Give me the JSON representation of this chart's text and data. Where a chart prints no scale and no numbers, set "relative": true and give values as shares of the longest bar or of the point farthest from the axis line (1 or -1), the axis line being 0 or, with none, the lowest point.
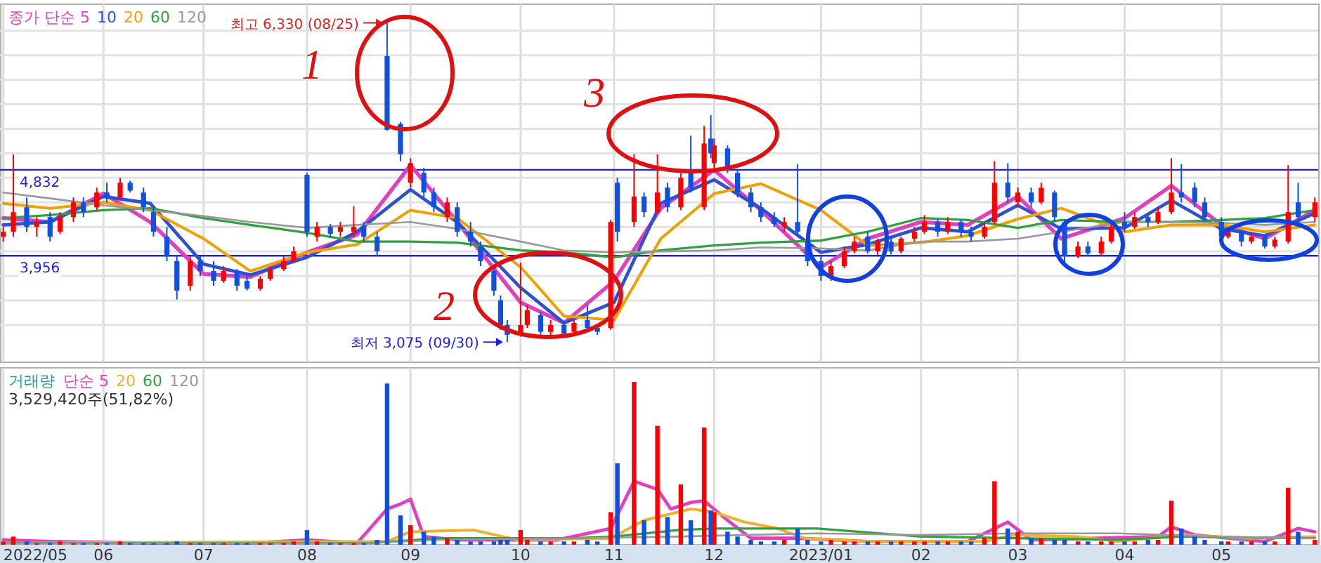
{
  "chart_data": [
    {
      "type": "candlestick",
      "xlim": [
        "2022-05-01",
        "2023-05-31"
      ],
      "ylim": [
        2870,
        6520
      ],
      "xticks": [
        {
          "value": "2022-05-02",
          "label": null
        },
        {
          "value": "2022-06-01",
          "label": null
        },
        {
          "value": "2022-07-01",
          "label": null
        },
        {
          "value": "2022-08-01",
          "label": null
        },
        {
          "value": "2022-09-01",
          "label": null
        },
        {
          "value": "2022-10-04",
          "label": null
        },
        {
          "value": "2022-11-01",
          "label": null
        },
        {
          "value": "2022-12-01",
          "label": null
        },
        {
          "value": "2023-01-02",
          "label": null
        },
        {
          "value": "2023-02-01",
          "label": null
        },
        {
          "value": "2023-03-02",
          "label": null
        },
        {
          "value": "2023-04-03",
          "label": null
        },
        {
          "value": "2023-05-02",
          "label": null
        }
      ],
      "yticks": [
        {
          "value": 3250,
          "label": null
        },
        {
          "value": 3500,
          "label": null
        },
        {
          "value": 3750,
          "label": null
        },
        {
          "value": 4000,
          "label": null
        },
        {
          "value": 4250,
          "label": null
        },
        {
          "value": 4500,
          "label": null
        },
        {
          "value": 4750,
          "label": null
        },
        {
          "value": 5000,
          "label": null
        },
        {
          "value": 5250,
          "label": null
        },
        {
          "value": 5500,
          "label": null
        },
        {
          "value": 5750,
          "label": null
        },
        {
          "value": 6000,
          "label": null
        },
        {
          "value": 6250,
          "label": null
        }
      ],
      "tick_labels": false,
      "grid": true,
      "legend": "top left",
      "x": [
        "2022-05-02",
        "2022-05-05",
        "2022-05-09",
        "2022-05-12",
        "2022-05-16",
        "2022-05-19",
        "2022-05-23",
        "2022-05-26",
        "2022-05-30",
        "2022-06-02",
        "2022-06-06",
        "2022-06-09",
        "2022-06-13",
        "2022-06-16",
        "2022-06-20",
        "2022-06-23",
        "2022-06-27",
        "2022-06-30",
        "2022-07-04",
        "2022-07-07",
        "2022-07-11",
        "2022-07-14",
        "2022-07-18",
        "2022-07-21",
        "2022-07-25",
        "2022-07-28",
        "2022-08-01",
        "2022-08-04",
        "2022-08-08",
        "2022-08-11",
        "2022-08-15",
        "2022-08-18",
        "2022-08-22",
        "2022-08-25",
        "2022-08-29",
        "2022-09-01",
        "2022-09-05",
        "2022-09-08",
        "2022-09-12",
        "2022-09-15",
        "2022-09-19",
        "2022-09-22",
        "2022-09-26",
        "2022-09-28",
        "2022-09-30",
        "2022-10-04",
        "2022-10-06",
        "2022-10-10",
        "2022-10-13",
        "2022-10-17",
        "2022-10-20",
        "2022-10-24",
        "2022-10-27",
        "2022-10-31",
        "2022-11-02",
        "2022-11-07",
        "2022-11-10",
        "2022-11-14",
        "2022-11-17",
        "2022-11-21",
        "2022-11-24",
        "2022-11-28",
        "2022-11-30",
        "2022-12-01",
        "2022-12-05",
        "2022-12-08",
        "2022-12-12",
        "2022-12-15",
        "2022-12-19",
        "2022-12-22",
        "2022-12-26",
        "2022-12-29",
        "2023-01-02",
        "2023-01-05",
        "2023-01-09",
        "2023-01-12",
        "2023-01-16",
        "2023-01-19",
        "2023-01-23",
        "2023-01-26",
        "2023-01-30",
        "2023-02-02",
        "2023-02-06",
        "2023-02-09",
        "2023-02-13",
        "2023-02-16",
        "2023-02-20",
        "2023-02-23",
        "2023-02-27",
        "2023-03-02",
        "2023-03-06",
        "2023-03-09",
        "2023-03-13",
        "2023-03-16",
        "2023-03-20",
        "2023-03-23",
        "2023-03-27",
        "2023-03-30",
        "2023-04-03",
        "2023-04-06",
        "2023-04-10",
        "2023-04-13",
        "2023-04-17",
        "2023-04-20",
        "2023-04-24",
        "2023-04-27",
        "2023-05-02",
        "2023-05-04",
        "2023-05-08",
        "2023-05-11",
        "2023-05-15",
        "2023-05-18",
        "2023-05-22",
        "2023-05-25",
        "2023-05-30"
      ],
      "ohlc": [
        [
          4150,
          4250,
          4100,
          4200
        ],
        [
          4200,
          4990,
          4150,
          4400
        ],
        [
          4450,
          4550,
          4200,
          4250
        ],
        [
          4250,
          4350,
          4150,
          4300
        ],
        [
          4350,
          4400,
          4100,
          4150
        ],
        [
          4200,
          4400,
          4180,
          4350
        ],
        [
          4350,
          4550,
          4300,
          4500
        ],
        [
          4500,
          4550,
          4350,
          4400
        ],
        [
          4450,
          4650,
          4420,
          4600
        ],
        [
          4600,
          4700,
          4500,
          4550
        ],
        [
          4550,
          4750,
          4530,
          4700
        ],
        [
          4700,
          4720,
          4600,
          4620
        ],
        [
          4600,
          4650,
          4400,
          4450
        ],
        [
          4400,
          4450,
          4150,
          4200
        ],
        [
          4150,
          4250,
          3900,
          3950
        ],
        [
          3900,
          3950,
          3510,
          3600
        ],
        [
          3650,
          3950,
          3600,
          3900
        ],
        [
          3900,
          3950,
          3750,
          3800
        ],
        [
          3800,
          3900,
          3650,
          3700
        ],
        [
          3700,
          3850,
          3680,
          3800
        ],
        [
          3800,
          3820,
          3600,
          3650
        ],
        [
          3700,
          3750,
          3600,
          3620
        ],
        [
          3620,
          3750,
          3600,
          3720
        ],
        [
          3720,
          3850,
          3700,
          3820
        ],
        [
          3820,
          3950,
          3800,
          3900
        ],
        [
          3900,
          4050,
          3880,
          4000
        ],
        [
          4780,
          4800,
          4150,
          4200
        ],
        [
          4150,
          4300,
          4100,
          4250
        ],
        [
          4250,
          4280,
          4150,
          4180
        ],
        [
          4200,
          4300,
          4150,
          4250
        ],
        [
          4200,
          4460,
          4150,
          4250
        ],
        [
          4250,
          4300,
          4100,
          4150
        ],
        [
          4150,
          4200,
          3950,
          4000
        ],
        [
          5990,
          6330,
          5230,
          5240
        ],
        [
          5300,
          5320,
          4920,
          4990
        ],
        [
          4700,
          4950,
          4650,
          4900
        ],
        [
          4800,
          4850,
          4550,
          4600
        ],
        [
          4600,
          4650,
          4400,
          4450
        ],
        [
          4350,
          4550,
          4300,
          4500
        ],
        [
          4450,
          4500,
          4150,
          4200
        ],
        [
          4200,
          4300,
          4050,
          4100
        ],
        [
          4050,
          4100,
          3850,
          3900
        ],
        [
          3800,
          3850,
          3550,
          3600
        ],
        [
          3500,
          3550,
          3200,
          3250
        ],
        [
          3250,
          3300,
          3075,
          3150
        ],
        [
          3150,
          3885,
          3130,
          3250
        ],
        [
          3250,
          3450,
          3220,
          3400
        ],
        [
          3350,
          3380,
          3150,
          3180
        ],
        [
          3180,
          3300,
          3120,
          3250
        ],
        [
          3250,
          3280,
          3130,
          3160
        ],
        [
          3180,
          3300,
          3150,
          3270
        ],
        [
          3300,
          3450,
          3200,
          3220
        ],
        [
          3220,
          3260,
          3150,
          3180
        ],
        [
          3220,
          4320,
          3200,
          4300
        ],
        [
          4700,
          4750,
          4100,
          4200
        ],
        [
          4300,
          4990,
          4250,
          4560
        ],
        [
          4560,
          4600,
          4350,
          4400
        ],
        [
          4400,
          4990,
          4380,
          4600
        ],
        [
          4650,
          4700,
          4400,
          4450
        ],
        [
          4450,
          4800,
          4420,
          4750
        ],
        [
          4800,
          5180,
          4600,
          4650
        ],
        [
          4450,
          5280,
          4420,
          5100
        ],
        [
          5150,
          5390,
          4950,
          5000
        ],
        [
          4900,
          5150,
          4850,
          5080
        ],
        [
          5050,
          5080,
          4800,
          4850
        ],
        [
          4800,
          4830,
          4550,
          4600
        ],
        [
          4600,
          4650,
          4400,
          4450
        ],
        [
          4450,
          4500,
          4300,
          4350
        ],
        [
          4350,
          4400,
          4250,
          4280
        ],
        [
          4250,
          4350,
          4200,
          4300
        ],
        [
          4300,
          4890,
          4150,
          4200
        ],
        [
          4100,
          4150,
          3850,
          3900
        ],
        [
          3900,
          3950,
          3700,
          3750
        ],
        [
          3750,
          3900,
          3700,
          3850
        ],
        [
          3850,
          4050,
          3830,
          4000
        ],
        [
          4000,
          4150,
          3980,
          4100
        ],
        [
          4150,
          4200,
          3980,
          4000
        ],
        [
          4000,
          4130,
          3960,
          4100
        ],
        [
          4100,
          4130,
          3970,
          4000
        ],
        [
          4000,
          4150,
          3980,
          4130
        ],
        [
          4130,
          4250,
          4100,
          4200
        ],
        [
          4200,
          4370,
          4180,
          4300
        ],
        [
          4300,
          4330,
          4150,
          4200
        ],
        [
          4200,
          4350,
          4180,
          4300
        ],
        [
          4300,
          4320,
          4150,
          4200
        ],
        [
          4200,
          4250,
          4100,
          4150
        ],
        [
          4150,
          4300,
          4130,
          4250
        ],
        [
          4300,
          4920,
          4280,
          4700
        ],
        [
          4700,
          4900,
          4500,
          4550
        ],
        [
          4500,
          4650,
          4450,
          4600
        ],
        [
          4600,
          4650,
          4450,
          4500
        ],
        [
          4500,
          4700,
          4480,
          4650
        ],
        [
          4600,
          4620,
          4300,
          4350
        ],
        [
          4300,
          4320,
          3870,
          3950
        ],
        [
          3950,
          4100,
          3930,
          4050
        ],
        [
          4050,
          4100,
          3950,
          3980
        ],
        [
          3980,
          4150,
          3960,
          4100
        ],
        [
          4100,
          4300,
          4080,
          4250
        ],
        [
          4300,
          4400,
          4200,
          4250
        ],
        [
          4250,
          4400,
          4230,
          4350
        ],
        [
          4350,
          4380,
          4250,
          4300
        ],
        [
          4300,
          4450,
          4280,
          4400
        ],
        [
          4400,
          4950,
          4380,
          4600
        ],
        [
          4600,
          4890,
          4500,
          4550
        ],
        [
          4650,
          4700,
          4450,
          4500
        ],
        [
          4500,
          4550,
          4300,
          4350
        ],
        [
          4300,
          4350,
          4100,
          4150
        ],
        [
          4150,
          4250,
          4130,
          4200
        ],
        [
          4200,
          4220,
          4050,
          4100
        ],
        [
          4100,
          4200,
          4080,
          4150
        ],
        [
          4150,
          4170,
          4030,
          4050
        ],
        [
          4050,
          4150,
          4030,
          4120
        ],
        [
          4100,
          4880,
          4080,
          4400
        ],
        [
          4500,
          4700,
          4300,
          4350
        ],
        [
          4350,
          4550,
          4300,
          4500
        ]
      ],
      "colors": [
        "#ff0000",
        "#ff0000",
        "#1050e0",
        "#ff0000",
        "#1050e0",
        "#ff0000",
        "#ff0000",
        "#1050e0",
        "#ff0000",
        "#1050e0",
        "#ff0000",
        "#1050e0",
        "#1050e0",
        "#1050e0",
        "#1050e0",
        "#1050e0",
        "#ff0000",
        "#1050e0",
        "#1050e0",
        "#ff0000",
        "#1050e0",
        "#1050e0",
        "#ff0000",
        "#ff0000",
        "#ff0000",
        "#ff0000",
        "#1050e0",
        "#ff0000",
        "#1050e0",
        "#ff0000",
        "#ff0000",
        "#1050e0",
        "#1050e0",
        "#1050e0",
        "#1050e0",
        "#ff0000",
        "#1050e0",
        "#1050e0",
        "#ff0000",
        "#1050e0",
        "#1050e0",
        "#1050e0",
        "#1050e0",
        "#1050e0",
        "#1050e0",
        "#ff0000",
        "#ff0000",
        "#1050e0",
        "#ff0000",
        "#1050e0",
        "#ff0000",
        "#1050e0",
        "#1050e0",
        "#ff0000",
        "#1050e0",
        "#ff0000",
        "#1050e0",
        "#ff0000",
        "#1050e0",
        "#ff0000",
        "#1050e0",
        "#ff0000",
        "#1050e0",
        "#ff0000",
        "#1050e0",
        "#1050e0",
        "#1050e0",
        "#1050e0",
        "#1050e0",
        "#ff0000",
        "#1050e0",
        "#1050e0",
        "#1050e0",
        "#ff0000",
        "#ff0000",
        "#ff0000",
        "#1050e0",
        "#ff0000",
        "#1050e0",
        "#ff0000",
        "#ff0000",
        "#ff0000",
        "#1050e0",
        "#ff0000",
        "#1050e0",
        "#1050e0",
        "#ff0000",
        "#ff0000",
        "#1050e0",
        "#ff0000",
        "#1050e0",
        "#ff0000",
        "#1050e0",
        "#1050e0",
        "#ff0000",
        "#1050e0",
        "#ff0000",
        "#ff0000",
        "#1050e0",
        "#ff0000",
        "#1050e0",
        "#ff0000",
        "#ff0000",
        "#1050e0",
        "#1050e0",
        "#1050e0",
        "#1050e0",
        "#ff0000",
        "#1050e0",
        "#ff0000",
        "#1050e0",
        "#ff0000",
        "#ff0000",
        "#1050e0",
        "#ff0000"
      ],
      "series": [
        {
          "type": "line",
          "name": "종가 단순 5",
          "color": "#e040c0",
          "x": [
            "2022-05-02",
            "2022-05-16",
            "2022-06-01",
            "2022-06-15",
            "2022-07-01",
            "2022-07-15",
            "2022-08-01",
            "2022-08-16",
            "2022-09-01",
            "2022-09-15",
            "2022-10-04",
            "2022-10-17",
            "2022-11-01",
            "2022-11-15",
            "2022-12-01",
            "2022-12-15",
            "2023-01-02",
            "2023-01-16",
            "2023-02-01",
            "2023-02-15",
            "2023-03-02",
            "2023-03-15",
            "2023-04-03",
            "2023-04-17",
            "2023-05-02",
            "2023-05-15",
            "2023-05-30"
          ],
          "values": [
            4340,
            4300,
            4590,
            4300,
            3770,
            3740,
            3990,
            4170,
            4880,
            4300,
            3480,
            3270,
            3700,
            4440,
            4830,
            4420,
            3840,
            4130,
            4300,
            4270,
            4560,
            4130,
            4340,
            4670,
            4270,
            4130,
            4420
          ]
        },
        {
          "type": "line",
          "name": "10",
          "color": "#3050d0",
          "x": [
            "2022-05-02",
            "2022-05-16",
            "2022-06-01",
            "2022-06-15",
            "2022-07-01",
            "2022-07-15",
            "2022-08-01",
            "2022-08-16",
            "2022-09-01",
            "2022-09-15",
            "2022-10-04",
            "2022-10-17",
            "2022-11-01",
            "2022-11-15",
            "2022-12-01",
            "2022-12-15",
            "2023-01-02",
            "2023-01-16",
            "2023-02-01",
            "2023-02-15",
            "2023-03-02",
            "2023-03-15",
            "2023-04-03",
            "2023-04-17",
            "2023-05-02",
            "2023-05-15",
            "2023-05-30"
          ],
          "values": [
            4270,
            4300,
            4560,
            4490,
            3870,
            3760,
            3940,
            4200,
            4630,
            4300,
            3630,
            3270,
            3480,
            4490,
            4730,
            4440,
            3990,
            4070,
            4240,
            4200,
            4470,
            4230,
            4240,
            4520,
            4230,
            4160,
            4390
          ]
        },
        {
          "type": "line",
          "name": "20",
          "color": "#f0a000",
          "x": [
            "2022-05-02",
            "2022-05-16",
            "2022-06-01",
            "2022-06-15",
            "2022-07-01",
            "2022-07-15",
            "2022-08-01",
            "2022-08-16",
            "2022-09-01",
            "2022-09-15",
            "2022-10-04",
            "2022-10-17",
            "2022-11-01",
            "2022-11-15",
            "2022-12-01",
            "2022-12-15",
            "2023-01-02",
            "2023-01-16",
            "2023-02-01",
            "2023-02-15",
            "2023-03-02",
            "2023-03-15",
            "2023-04-03",
            "2023-04-17",
            "2023-05-02",
            "2023-05-15",
            "2023-05-30"
          ],
          "values": [
            4490,
            4440,
            4500,
            4420,
            4130,
            3800,
            3990,
            4070,
            4420,
            4340,
            3840,
            3340,
            3300,
            4130,
            4590,
            4690,
            4420,
            4060,
            4090,
            4160,
            4330,
            4440,
            4200,
            4270,
            4270,
            4200,
            4270
          ]
        },
        {
          "type": "line",
          "name": "60",
          "color": "#30a040",
          "x": [
            "2022-05-02",
            "2022-05-16",
            "2022-06-01",
            "2022-06-15",
            "2022-07-01",
            "2022-07-15",
            "2022-08-01",
            "2022-08-16",
            "2022-09-01",
            "2022-09-15",
            "2022-10-04",
            "2022-10-17",
            "2022-11-01",
            "2022-11-15",
            "2022-12-01",
            "2022-12-15",
            "2023-01-02",
            "2023-01-16",
            "2023-02-01",
            "2023-02-15",
            "2023-03-02",
            "2023-03-15",
            "2023-04-03",
            "2023-04-17",
            "2023-05-02",
            "2023-05-15",
            "2023-05-30"
          ],
          "values": [
            4340,
            4370,
            4420,
            4440,
            4340,
            4270,
            4190,
            4100,
            4100,
            4090,
            4010,
            3990,
            3940,
            4010,
            4060,
            4090,
            4110,
            4200,
            4340,
            4320,
            4240,
            4320,
            4300,
            4300,
            4320,
            4340,
            4420
          ]
        },
        {
          "type": "line",
          "name": "120",
          "color": "#999999",
          "x": [
            "2022-05-02",
            "2022-05-16",
            "2022-06-01",
            "2022-06-15",
            "2022-07-01",
            "2022-07-15",
            "2022-08-01",
            "2022-08-16",
            "2022-09-01",
            "2022-09-15",
            "2022-10-04",
            "2022-10-17",
            "2022-11-01",
            "2022-11-15",
            "2022-12-01",
            "2022-12-15",
            "2023-01-02",
            "2023-01-16",
            "2023-02-01",
            "2023-02-15",
            "2023-03-02",
            "2023-03-15",
            "2023-04-03",
            "2023-04-17",
            "2023-05-02",
            "2023-05-15",
            "2023-05-30"
          ],
          "values": [
            4600,
            4540,
            4470,
            4420,
            4360,
            4300,
            4240,
            4270,
            4300,
            4230,
            4100,
            4010,
            3990,
            4000,
            4010,
            4040,
            4030,
            4010,
            4100,
            4100,
            4130,
            4200,
            4300,
            4300,
            4290,
            4270,
            4300
          ]
        }
      ],
      "ref_lines": [
        {
          "axis": "y",
          "value": 4832,
          "label": "4,832",
          "color": "#2020e0"
        },
        {
          "axis": "y",
          "value": 3956,
          "label": "3,956",
          "color": "#2020e0"
        }
      ],
      "annotations": [
        {
          "text": "최고 6,330 (08/25)",
          "x": "2022-08-25",
          "y": 6330
        },
        {
          "text": "최저 3,075 (09/30)",
          "x": "2022-09-30",
          "y": 3075
        },
        "1",
        "2",
        "3"
      ]
    },
    {
      "type": "bar",
      "relative": true,
      "xlim": [
        "2022-05-01",
        "2023-05-31"
      ],
      "xticks": [
        {
          "value": "2022-05-02",
          "label": "2022/05"
        },
        {
          "value": "2022-06-01",
          "label": "06"
        },
        {
          "value": "2022-07-01",
          "label": "07"
        },
        {
          "value": "2022-08-01",
          "label": "08"
        },
        {
          "value": "2022-09-01",
          "label": "09"
        },
        {
          "value": "2022-10-04",
          "label": "10"
        },
        {
          "value": "2022-11-01",
          "label": "11"
        },
        {
          "value": "2022-12-01",
          "label": "12"
        },
        {
          "value": "2023-01-02",
          "label": "2023/01"
        },
        {
          "value": "2023-02-01",
          "label": "02"
        },
        {
          "value": "2023-03-02",
          "label": "03"
        },
        {
          "value": "2023-04-03",
          "label": "04"
        },
        {
          "value": "2023-05-02",
          "label": "05"
        }
      ],
      "tick_labels": "x",
      "grid": "x",
      "legend": "top left",
      "legend_title": "거래량",
      "x": [
        "2022-05-02",
        "2022-05-05",
        "2022-05-09",
        "2022-05-12",
        "2022-05-16",
        "2022-05-19",
        "2022-05-23",
        "2022-05-26",
        "2022-05-30",
        "2022-06-02",
        "2022-06-06",
        "2022-06-09",
        "2022-06-13",
        "2022-06-16",
        "2022-06-20",
        "2022-06-23",
        "2022-06-27",
        "2022-06-30",
        "2022-07-04",
        "2022-07-07",
        "2022-07-11",
        "2022-07-14",
        "2022-07-18",
        "2022-07-21",
        "2022-07-25",
        "2022-07-28",
        "2022-08-01",
        "2022-08-04",
        "2022-08-08",
        "2022-08-11",
        "2022-08-15",
        "2022-08-18",
        "2022-08-22",
        "2022-08-25",
        "2022-08-29",
        "2022-09-01",
        "2022-09-05",
        "2022-09-08",
        "2022-09-12",
        "2022-09-15",
        "2022-09-19",
        "2022-09-22",
        "2022-09-26",
        "2022-09-28",
        "2022-09-30",
        "2022-10-04",
        "2022-10-06",
        "2022-10-10",
        "2022-10-13",
        "2022-10-17",
        "2022-10-20",
        "2022-10-24",
        "2022-10-27",
        "2022-10-31",
        "2022-11-02",
        "2022-11-07",
        "2022-11-10",
        "2022-11-14",
        "2022-11-17",
        "2022-11-21",
        "2022-11-24",
        "2022-11-28",
        "2022-11-30",
        "2022-12-01",
        "2022-12-05",
        "2022-12-08",
        "2022-12-12",
        "2022-12-15",
        "2022-12-19",
        "2022-12-22",
        "2022-12-26",
        "2022-12-29",
        "2023-01-02",
        "2023-01-05",
        "2023-01-09",
        "2023-01-12",
        "2023-01-16",
        "2023-01-19",
        "2023-01-23",
        "2023-01-26",
        "2023-01-30",
        "2023-02-02",
        "2023-02-06",
        "2023-02-09",
        "2023-02-13",
        "2023-02-16",
        "2023-02-20",
        "2023-02-23",
        "2023-02-27",
        "2023-03-02",
        "2023-03-06",
        "2023-03-09",
        "2023-03-13",
        "2023-03-16",
        "2023-03-20",
        "2023-03-23",
        "2023-03-27",
        "2023-03-30",
        "2023-04-03",
        "2023-04-06",
        "2023-04-10",
        "2023-04-13",
        "2023-04-17",
        "2023-04-20",
        "2023-04-24",
        "2023-04-27",
        "2023-05-02",
        "2023-05-04",
        "2023-05-08",
        "2023-05-11",
        "2023-05-15",
        "2023-05-18",
        "2023-05-22",
        "2023-05-25",
        "2023-05-30"
      ],
      "values": [
        0.02,
        0.05,
        0.02,
        0.01,
        0.01,
        0.02,
        0.01,
        0.01,
        0.01,
        0.01,
        0.02,
        0.01,
        0.01,
        0.01,
        0.01,
        0.02,
        0.01,
        0.01,
        0.01,
        0.01,
        0.01,
        0.01,
        0.01,
        0.01,
        0.01,
        0.02,
        0.09,
        0.02,
        0.01,
        0.01,
        0.01,
        0.01,
        0.03,
        0.99,
        0.18,
        0.12,
        0.08,
        0.05,
        0.04,
        0.03,
        0.02,
        0.02,
        0.02,
        0.03,
        0.03,
        0.09,
        0.03,
        0.02,
        0.02,
        0.02,
        0.02,
        0.03,
        0.02,
        0.2,
        0.5,
        1,
        0.15,
        0.73,
        0.17,
        0.37,
        0.15,
        0.72,
        0.21,
        0.2,
        0.08,
        0.05,
        0.03,
        0.02,
        0.02,
        0.03,
        0.1,
        0.03,
        0.02,
        0.03,
        0.02,
        0.02,
        0.02,
        0.02,
        0.02,
        0.02,
        0.02,
        0.02,
        0.02,
        0.02,
        0.02,
        0.02,
        0.04,
        0.39,
        0.1,
        0.08,
        0.04,
        0.04,
        0.03,
        0.03,
        0.02,
        0.02,
        0.02,
        0.02,
        0.02,
        0.02,
        0.03,
        0.03,
        0.27,
        0.1,
        0.05,
        0.03,
        0.02,
        0.02,
        0.02,
        0.02,
        0.02,
        0.02,
        0.35,
        0.08,
        0.03
      ],
      "colors": [
        "#ff0000",
        "#ff0000",
        "#1050e0",
        "#ff0000",
        "#1050e0",
        "#ff0000",
        "#ff0000",
        "#1050e0",
        "#ff0000",
        "#1050e0",
        "#ff0000",
        "#1050e0",
        "#1050e0",
        "#1050e0",
        "#1050e0",
        "#1050e0",
        "#ff0000",
        "#1050e0",
        "#1050e0",
        "#ff0000",
        "#1050e0",
        "#1050e0",
        "#ff0000",
        "#ff0000",
        "#ff0000",
        "#ff0000",
        "#1050e0",
        "#ff0000",
        "#1050e0",
        "#ff0000",
        "#ff0000",
        "#1050e0",
        "#1050e0",
        "#1050e0",
        "#1050e0",
        "#ff0000",
        "#1050e0",
        "#1050e0",
        "#ff0000",
        "#1050e0",
        "#1050e0",
        "#1050e0",
        "#1050e0",
        "#1050e0",
        "#1050e0",
        "#ff0000",
        "#ff0000",
        "#1050e0",
        "#ff0000",
        "#1050e0",
        "#ff0000",
        "#1050e0",
        "#1050e0",
        "#ff0000",
        "#1050e0",
        "#ff0000",
        "#1050e0",
        "#ff0000",
        "#1050e0",
        "#ff0000",
        "#1050e0",
        "#ff0000",
        "#1050e0",
        "#ff0000",
        "#1050e0",
        "#1050e0",
        "#1050e0",
        "#1050e0",
        "#1050e0",
        "#ff0000",
        "#1050e0",
        "#1050e0",
        "#1050e0",
        "#ff0000",
        "#ff0000",
        "#ff0000",
        "#1050e0",
        "#ff0000",
        "#1050e0",
        "#ff0000",
        "#ff0000",
        "#ff0000",
        "#1050e0",
        "#ff0000",
        "#1050e0",
        "#1050e0",
        "#ff0000",
        "#ff0000",
        "#1050e0",
        "#ff0000",
        "#1050e0",
        "#ff0000",
        "#1050e0",
        "#1050e0",
        "#ff0000",
        "#1050e0",
        "#ff0000",
        "#ff0000",
        "#1050e0",
        "#ff0000",
        "#1050e0",
        "#ff0000",
        "#ff0000",
        "#1050e0",
        "#1050e0",
        "#1050e0",
        "#1050e0",
        "#ff0000",
        "#1050e0",
        "#ff0000",
        "#1050e0",
        "#ff0000",
        "#ff0000",
        "#1050e0",
        "#ff0000"
      ],
      "series": [
        {
          "type": "line",
          "name": "단순 5",
          "color": "#e040c0",
          "x": [
            "2022-05-02",
            "2022-05-16",
            "2022-06-15",
            "2022-07-15",
            "2022-08-01",
            "2022-08-16",
            "2022-08-25",
            "2022-08-29",
            "2022-09-01",
            "2022-09-05",
            "2022-09-15",
            "2022-10-15",
            "2022-10-31",
            "2022-11-07",
            "2022-11-14",
            "2022-11-18",
            "2022-11-24",
            "2022-11-28",
            "2022-12-05",
            "2022-12-12",
            "2022-12-26",
            "2023-01-16",
            "2023-02-15",
            "2023-02-23",
            "2023-02-27",
            "2023-03-06",
            "2023-04-13",
            "2023-04-17",
            "2023-04-24",
            "2023-05-15",
            "2023-05-25",
            "2023-05-30"
          ],
          "values": [
            0.03,
            0.02,
            0.01,
            0.01,
            0.03,
            0.01,
            0.22,
            0.25,
            0.28,
            0.05,
            0.03,
            0.03,
            0.1,
            0.39,
            0.34,
            0.22,
            0.26,
            0.27,
            0.15,
            0.04,
            0.04,
            0.02,
            0.02,
            0.1,
            0.14,
            0.03,
            0.05,
            0.11,
            0.06,
            0.02,
            0.1,
            0.08
          ]
        },
        {
          "type": "line",
          "name": "20",
          "color": "#f0b030",
          "x": [
            "2022-05-02",
            "2022-08-25",
            "2022-09-01",
            "2022-09-20",
            "2022-10-03",
            "2022-10-31",
            "2022-11-10",
            "2022-11-24",
            "2022-12-01",
            "2022-12-10",
            "2022-12-20",
            "2022-12-28",
            "2023-01-15",
            "2023-02-20",
            "2023-03-01",
            "2023-03-20",
            "2023-04-01",
            "2023-04-20",
            "2023-05-10",
            "2023-05-30"
          ],
          "values": [
            0.01,
            0.02,
            0.08,
            0.09,
            0.03,
            0.04,
            0.15,
            0.22,
            0.2,
            0.14,
            0.1,
            0.04,
            0.02,
            0.02,
            0.06,
            0.05,
            0.02,
            0.06,
            0.04,
            0.05
          ]
        },
        {
          "type": "line",
          "name": "60",
          "color": "#30a040",
          "x": [
            "2022-05-02",
            "2022-08-20",
            "2022-09-10",
            "2022-10-20",
            "2022-11-01",
            "2022-11-20",
            "2022-12-01",
            "2023-01-01",
            "2023-02-01",
            "2023-03-01",
            "2023-04-01",
            "2023-04-20",
            "2023-05-30"
          ],
          "values": [
            0.01,
            0.01,
            0.04,
            0.04,
            0.05,
            0.09,
            0.1,
            0.1,
            0.05,
            0.04,
            0.03,
            0.05,
            0.04
          ]
        },
        {
          "type": "line",
          "name": "120",
          "color": "#999999",
          "x": [
            "2022-05-02",
            "2022-08-20",
            "2022-09-10",
            "2022-10-20",
            "2022-11-20",
            "2022-12-10",
            "2023-01-01",
            "2023-02-01",
            "2023-03-01",
            "2023-04-01",
            "2023-05-01",
            "2023-05-30"
          ],
          "values": [
            0.01,
            0.01,
            0.03,
            0.04,
            0.05,
            0.06,
            0.07,
            0.06,
            0.07,
            0.07,
            0.05,
            0.04
          ]
        }
      ],
      "annotations": [
        "3,529,420주(51,82%)"
      ]
    }
  ]
}
